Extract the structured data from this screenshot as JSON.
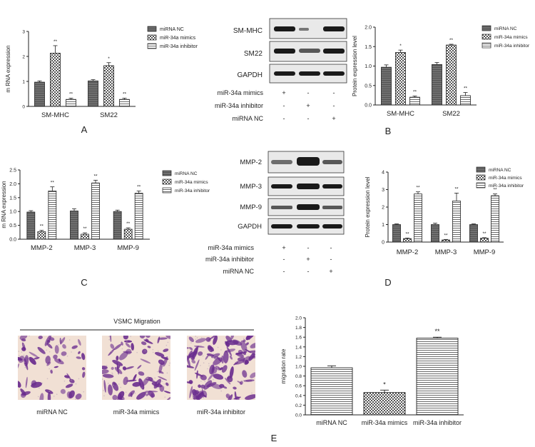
{
  "figure": {
    "panel_letters": [
      "A",
      "B",
      "C",
      "D",
      "E"
    ],
    "vsmc_title": "VSMC Migration",
    "image_labels": [
      "miRNA NC",
      "miR-34a mimics",
      "miR-34a inhibitor"
    ]
  },
  "colors": {
    "nc": "#6b6b6b",
    "mimics": "#cfcfcf",
    "inhibitor": "#ffffff",
    "purple": "#6a2c8e"
  },
  "legend": [
    "miRNA NC",
    "miR-34a mimics",
    "miR-34a inhibitor"
  ],
  "blotB": {
    "rows": [
      "SM-MHC",
      "SM22",
      "GAPDH"
    ],
    "conditions": [
      "miR-34a mimics",
      "miR-34a inhibitor",
      "miRNA NC"
    ],
    "matrix": [
      [
        "+",
        "-",
        "-"
      ],
      [
        "-",
        "+",
        "-"
      ],
      [
        "-",
        "-",
        "+"
      ]
    ]
  },
  "blotD": {
    "rows": [
      "MMP-2",
      "MMP-3",
      "MMP-9",
      "GAPDH"
    ],
    "conditions": [
      "miR-34a mimics",
      "miR-34a inhibitor",
      "miRNA NC"
    ],
    "matrix": [
      [
        "+",
        "-",
        "-"
      ],
      [
        "-",
        "+",
        "-"
      ],
      [
        "-",
        "-",
        "+"
      ]
    ]
  },
  "chart_data": [
    {
      "panel": "A",
      "type": "bar",
      "categories": [
        "SM-MHC",
        "SM22"
      ],
      "ylabel": "m RNA expression",
      "ylim": [
        0,
        3
      ],
      "yticks": [
        "0",
        "1",
        "2",
        "3"
      ],
      "series": [
        {
          "name": "miRNA NC",
          "values": [
            0.97,
            1.02
          ],
          "errors": [
            0.05,
            0.05
          ],
          "sig": [
            "",
            ""
          ]
        },
        {
          "name": "miR-34a mimics",
          "values": [
            2.13,
            1.63
          ],
          "errors": [
            0.3,
            0.12
          ],
          "sig": [
            "**",
            "*"
          ]
        },
        {
          "name": "miR-34a inhibitor",
          "values": [
            0.28,
            0.28
          ],
          "errors": [
            0.05,
            0.05
          ],
          "sig": [
            "**",
            "**"
          ]
        }
      ]
    },
    {
      "panel": "B",
      "type": "bar",
      "categories": [
        "SM-MHC",
        "SM22"
      ],
      "ylabel": "Protein expression level",
      "ylim": [
        0,
        2
      ],
      "yticks": [
        "0.0",
        "0.5",
        "1.0",
        "1.5",
        "2.0"
      ],
      "series": [
        {
          "name": "miRNA NC",
          "values": [
            0.97,
            1.04
          ],
          "errors": [
            0.06,
            0.05
          ],
          "sig": [
            "",
            ""
          ]
        },
        {
          "name": "miR-34a mimics",
          "values": [
            1.35,
            1.54
          ],
          "errors": [
            0.06,
            0.02
          ],
          "sig": [
            "*",
            "**"
          ]
        },
        {
          "name": "miR-34a inhibitor",
          "values": [
            0.2,
            0.24
          ],
          "errors": [
            0.03,
            0.08
          ],
          "sig": [
            "**",
            "**"
          ]
        }
      ]
    },
    {
      "panel": "C",
      "type": "bar",
      "categories": [
        "MMP-2",
        "MMP-3",
        "MMP-9"
      ],
      "ylabel": "m RNA expression",
      "ylim": [
        0,
        2.5
      ],
      "yticks": [
        "0.0",
        "0.5",
        "1.0",
        "1.5",
        "2.0",
        "2.5"
      ],
      "series": [
        {
          "name": "miRNA NC",
          "values": [
            0.98,
            1.02,
            1.0
          ],
          "errors": [
            0.05,
            0.08,
            0.05
          ],
          "sig": [
            "",
            "",
            ""
          ]
        },
        {
          "name": "miR-34a mimics",
          "values": [
            0.27,
            0.18,
            0.36
          ],
          "errors": [
            0.05,
            0.05,
            0.05
          ],
          "sig": [
            "**",
            "**",
            "**"
          ]
        },
        {
          "name": "miR-34a inhibitor",
          "values": [
            1.74,
            2.03,
            1.66
          ],
          "errors": [
            0.15,
            0.1,
            0.08
          ],
          "sig": [
            "**",
            "**",
            "**"
          ]
        }
      ]
    },
    {
      "panel": "D",
      "type": "bar",
      "categories": [
        "MMP-2",
        "MMP-3",
        "MMP-9"
      ],
      "ylabel": "Protein expression level",
      "ylim": [
        0,
        4
      ],
      "yticks": [
        "0",
        "1",
        "2",
        "3",
        "4"
      ],
      "series": [
        {
          "name": "miRNA NC",
          "values": [
            1.0,
            1.0,
            1.0
          ],
          "errors": [
            0.04,
            0.08,
            0.04
          ],
          "sig": [
            "",
            "",
            ""
          ]
        },
        {
          "name": "miR-34a mimics",
          "values": [
            0.2,
            0.12,
            0.22
          ],
          "errors": [
            0.03,
            0.03,
            0.03
          ],
          "sig": [
            "**",
            "**",
            "**"
          ]
        },
        {
          "name": "miR-34a inhibitor",
          "values": [
            2.75,
            2.35,
            2.65
          ],
          "errors": [
            0.12,
            0.45,
            0.1
          ],
          "sig": [
            "**",
            "**",
            "**"
          ]
        }
      ]
    },
    {
      "panel": "E",
      "type": "bar",
      "categories": [
        "miRNA NC",
        "miR-34a mimics",
        "miR-34a inhibitor"
      ],
      "ylabel": "migration rate",
      "ylim": [
        0,
        2
      ],
      "yticks": [
        "0.0",
        "0.2",
        "0.4",
        "0.6",
        "0.8",
        "1.0",
        "1.2",
        "1.4",
        "1.6",
        "1.8",
        "2.0"
      ],
      "values": [
        0.97,
        0.46,
        1.58
      ],
      "errors": [
        0.04,
        0.05,
        0.02
      ],
      "sig": [
        "",
        "*",
        "**"
      ]
    }
  ]
}
